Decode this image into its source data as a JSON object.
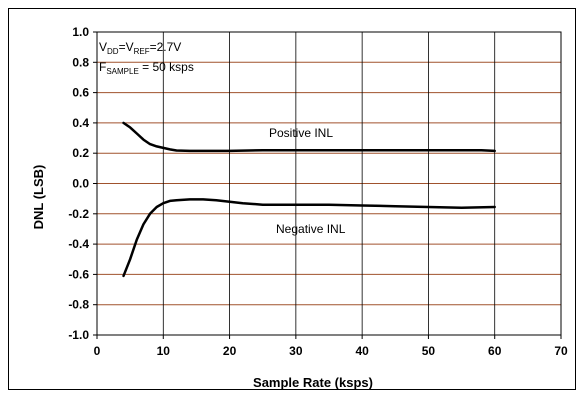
{
  "chart_data": {
    "type": "line",
    "xlabel": "Sample Rate (ksps)",
    "ylabel": "DNL (LSB)",
    "xlim": [
      0,
      70
    ],
    "ylim": [
      -1.0,
      1.0
    ],
    "x_ticks": [
      "0",
      "10",
      "20",
      "30",
      "40",
      "50",
      "60",
      "70"
    ],
    "y_ticks": [
      "1.0",
      "0.8",
      "0.6",
      "0.4",
      "0.2",
      "0.0",
      "-0.2",
      "-0.4",
      "-0.6",
      "-0.8",
      "-1.0"
    ],
    "grid": "horizontal and vertical",
    "gridline_colors": {
      "horizontal": "#a0522d",
      "vertical": "#000000"
    },
    "annotations": {
      "line1": {
        "parts": [
          {
            "text": "V",
            "sub": false
          },
          {
            "text": "DD",
            "sub": true
          },
          {
            "text": "=V",
            "sub": false
          },
          {
            "text": "REF",
            "sub": true
          },
          {
            "text": "=2.7V",
            "sub": false
          }
        ]
      },
      "line2": {
        "parts": [
          {
            "text": "F",
            "sub": false
          },
          {
            "text": "SAMPLE",
            "sub": true
          },
          {
            "text": " = 50 ksps",
            "sub": false
          }
        ]
      }
    },
    "series": [
      {
        "name": "Positive INL",
        "x": [
          4,
          5,
          6,
          7,
          8,
          9,
          10,
          11,
          12,
          14,
          16,
          20,
          25,
          30,
          40,
          50,
          58,
          60
        ],
        "y": [
          0.4,
          0.37,
          0.33,
          0.29,
          0.26,
          0.245,
          0.235,
          0.225,
          0.218,
          0.215,
          0.215,
          0.215,
          0.22,
          0.22,
          0.22,
          0.22,
          0.22,
          0.215
        ]
      },
      {
        "name": "Negative INL",
        "x": [
          4,
          5,
          6,
          7,
          8,
          9,
          10,
          11,
          12,
          14,
          16,
          18,
          20,
          22,
          25,
          30,
          35,
          40,
          45,
          50,
          55,
          60
        ],
        "y": [
          -0.61,
          -0.5,
          -0.37,
          -0.27,
          -0.2,
          -0.155,
          -0.13,
          -0.115,
          -0.11,
          -0.105,
          -0.105,
          -0.11,
          -0.12,
          -0.13,
          -0.14,
          -0.14,
          -0.14,
          -0.145,
          -0.15,
          -0.155,
          -0.16,
          -0.155
        ]
      }
    ],
    "line_color": "#000000"
  }
}
